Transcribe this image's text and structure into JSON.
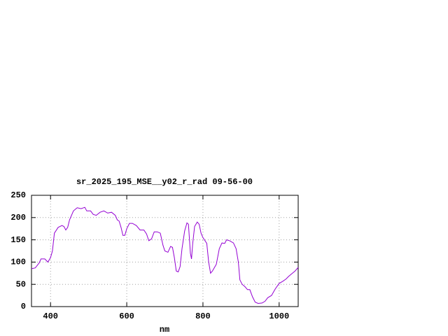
{
  "chart_data": {
    "type": "line",
    "title": "sr_2025_195_MSE__y02_r_rad 09-56-00",
    "x_label": "nm",
    "x": [
      350,
      360,
      370,
      375,
      385,
      393,
      400,
      405,
      410,
      420,
      430,
      435,
      440,
      445,
      450,
      460,
      470,
      480,
      490,
      495,
      505,
      512,
      520,
      530,
      540,
      550,
      560,
      570,
      575,
      580,
      585,
      590,
      595,
      600,
      607,
      615,
      625,
      635,
      645,
      652,
      658,
      665,
      672,
      680,
      688,
      695,
      700,
      708,
      715,
      720,
      725,
      730,
      735,
      740,
      745,
      752,
      758,
      762,
      767,
      770,
      773,
      778,
      785,
      790,
      795,
      800,
      810,
      815,
      820,
      825,
      835,
      843,
      850,
      857,
      862,
      870,
      880,
      887,
      893,
      897,
      903,
      910,
      917,
      923,
      930,
      937,
      945,
      955,
      963,
      970,
      980,
      990,
      1000,
      1010,
      1018,
      1025,
      1035,
      1042,
      1050
    ],
    "series": [
      {
        "color": "#9400d3",
        "values": [
          85,
          87,
          98,
          107,
          107,
          100,
          110,
          125,
          165,
          178,
          182,
          180,
          172,
          178,
          195,
          215,
          222,
          220,
          223,
          215,
          215,
          207,
          205,
          212,
          215,
          210,
          212,
          205,
          195,
          192,
          178,
          160,
          160,
          175,
          187,
          187,
          182,
          172,
          172,
          163,
          148,
          152,
          168,
          168,
          165,
          138,
          125,
          122,
          135,
          133,
          110,
          80,
          78,
          90,
          130,
          170,
          188,
          185,
          120,
          107,
          140,
          180,
          190,
          185,
          165,
          155,
          142,
          100,
          75,
          80,
          95,
          130,
          143,
          142,
          150,
          148,
          143,
          130,
          100,
          60,
          50,
          45,
          38,
          38,
          22,
          10,
          7,
          8,
          12,
          20,
          25,
          40,
          52,
          57,
          62,
          68,
          75,
          80,
          88
        ]
      }
    ],
    "xlim": [
      350,
      1050
    ],
    "ylim": [
      0,
      250
    ],
    "xticks": [
      400,
      600,
      800,
      1000
    ],
    "yticks": [
      0,
      50,
      100,
      150,
      200,
      250
    ],
    "grid": true
  }
}
